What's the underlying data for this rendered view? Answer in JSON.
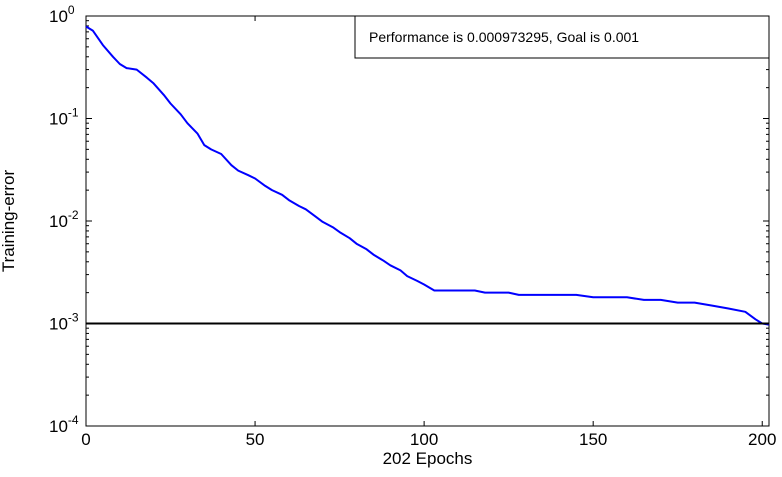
{
  "chart_data": {
    "type": "line",
    "title": "",
    "xlabel": "202 Epochs",
    "ylabel": "Training-error",
    "xlim": [
      0,
      202
    ],
    "ylim": [
      0.0001,
      1
    ],
    "yscale": "log",
    "xticks": [
      0,
      50,
      100,
      150,
      200
    ],
    "xtick_labels": [
      "0",
      "50",
      "100",
      "150",
      "200"
    ],
    "yticks": [
      1,
      0.1,
      0.01,
      0.001,
      0.0001
    ],
    "ytick_labels": [
      {
        "base": "10",
        "exp": "0"
      },
      {
        "base": "10",
        "exp": "-1"
      },
      {
        "base": "10",
        "exp": "-2"
      },
      {
        "base": "10",
        "exp": "-3"
      },
      {
        "base": "10",
        "exp": "-4"
      }
    ],
    "grid": false,
    "legend_text": "Performance is 0.000973295, Goal is 0.001",
    "legend_position": "top-right",
    "series": [
      {
        "color": "#0000ff",
        "x": [
          0,
          2,
          5,
          8,
          10,
          12,
          15,
          18,
          20,
          23,
          25,
          28,
          30,
          33,
          35,
          37,
          40,
          43,
          45,
          48,
          50,
          53,
          55,
          58,
          60,
          63,
          65,
          68,
          70,
          73,
          75,
          78,
          80,
          83,
          85,
          88,
          90,
          93,
          95,
          98,
          100,
          103,
          105,
          107,
          110,
          115,
          118,
          120,
          125,
          128,
          130,
          135,
          140,
          145,
          150,
          155,
          160,
          165,
          170,
          175,
          180,
          185,
          190,
          195,
          198,
          200,
          202
        ],
        "y": [
          0.79,
          0.72,
          0.52,
          0.4,
          0.34,
          0.31,
          0.3,
          0.25,
          0.22,
          0.17,
          0.14,
          0.11,
          0.09,
          0.071,
          0.055,
          0.05,
          0.045,
          0.035,
          0.031,
          0.028,
          0.026,
          0.022,
          0.02,
          0.018,
          0.016,
          0.014,
          0.013,
          0.011,
          0.0098,
          0.0087,
          0.0078,
          0.0068,
          0.006,
          0.0053,
          0.0047,
          0.0041,
          0.0037,
          0.0033,
          0.0029,
          0.0026,
          0.0024,
          0.0021,
          0.0021,
          0.0021,
          0.0021,
          0.0021,
          0.002,
          0.002,
          0.002,
          0.0019,
          0.0019,
          0.0019,
          0.0019,
          0.0019,
          0.0018,
          0.0018,
          0.0018,
          0.0017,
          0.0017,
          0.0016,
          0.0016,
          0.0015,
          0.0014,
          0.0013,
          0.0011,
          0.001,
          0.000973295
        ]
      },
      {
        "color": "#000000",
        "x": [
          0,
          202
        ],
        "y": [
          0.001,
          0.001
        ]
      }
    ]
  }
}
